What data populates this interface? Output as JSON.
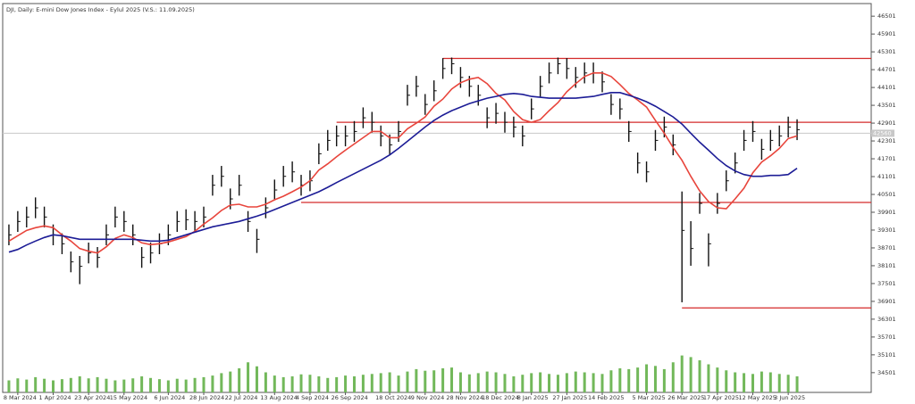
{
  "chart_data": {
    "type": "ohlc",
    "title": "DJI, Daily:  E-mini Dow Jones Index - Eylul 2025 (V.S.: 11.09.2025)",
    "categories": [
      null,
      "8 Mar 2024",
      null,
      null,
      null,
      "1 Apr 2024",
      null,
      null,
      null,
      "23 Apr 2024",
      null,
      null,
      null,
      "15 May 2024",
      null,
      null,
      null,
      null,
      "6 Jun 2024",
      null,
      null,
      null,
      "28 Jun 2024",
      null,
      null,
      null,
      "22 Jul 2024",
      null,
      null,
      null,
      "13 Aug 2024",
      null,
      null,
      null,
      "4 Sep 2024",
      null,
      null,
      null,
      "26 Sep 2024",
      null,
      null,
      null,
      null,
      "18 Oct 2024",
      null,
      null,
      null,
      "9 Nov 2024",
      null,
      null,
      null,
      "28 Nov 2024",
      null,
      null,
      null,
      "18 Dec 2024",
      null,
      null,
      null,
      "8 Jan 2025",
      null,
      null,
      null,
      "27 Jan 2025",
      null,
      null,
      null,
      "14 Feb 2025",
      null,
      null,
      null,
      null,
      "5 Mar 2025",
      null,
      null,
      null,
      "26 Mar 2025",
      null,
      null,
      null,
      "17 Apr 2025",
      null,
      null,
      null,
      "12 May 2025",
      null,
      null,
      null,
      "3 Jun 2025",
      null
    ],
    "high": [
      39490,
      39940,
      40090,
      40400,
      40090,
      39490,
      39190,
      38580,
      38430,
      38880,
      38730,
      39490,
      40090,
      39940,
      39490,
      38730,
      38880,
      39190,
      39490,
      39940,
      40000,
      39940,
      40090,
      41160,
      41460,
      40700,
      41160,
      39940,
      39340,
      40400,
      41000,
      41460,
      41610,
      41160,
      41310,
      42220,
      42670,
      42820,
      42820,
      42970,
      43430,
      43280,
      42820,
      42520,
      42970,
      44190,
      44490,
      43880,
      44340,
      45090,
      45110,
      44790,
      44490,
      44190,
      43430,
      43580,
      43280,
      43120,
      42820,
      43730,
      44490,
      44940,
      45110,
      45090,
      44790,
      44940,
      44940,
      44640,
      43880,
      43730,
      42970,
      41910,
      41610,
      42670,
      43120,
      42520,
      40600,
      39600,
      40550,
      39190,
      40550,
      41310,
      41910,
      42670,
      42970,
      42370,
      42670,
      42820,
      43120,
      43030
    ],
    "low": [
      38790,
      39240,
      39390,
      39700,
      39390,
      38790,
      38490,
      37880,
      37480,
      38180,
      38030,
      38790,
      39390,
      39240,
      38790,
      38030,
      38180,
      38490,
      38790,
      39240,
      39300,
      39240,
      39390,
      40460,
      40760,
      40000,
      40460,
      39240,
      38530,
      39700,
      40300,
      40760,
      40910,
      40460,
      40610,
      41520,
      41970,
      42120,
      42120,
      42270,
      42730,
      42580,
      42120,
      41820,
      42270,
      43490,
      43790,
      43180,
      43640,
      44390,
      44550,
      44090,
      43790,
      43490,
      42730,
      42880,
      42580,
      42420,
      42120,
      43030,
      43790,
      44240,
      44550,
      44390,
      44090,
      44240,
      44240,
      43940,
      43180,
      43030,
      42270,
      41210,
      40910,
      41970,
      42420,
      41820,
      36870,
      38100,
      39850,
      38080,
      39850,
      40610,
      41210,
      41970,
      42270,
      41670,
      41970,
      42120,
      42420,
      42330
    ],
    "close": [
      39140,
      39590,
      39740,
      40050,
      39740,
      39140,
      38840,
      38230,
      38080,
      38530,
      38380,
      39140,
      39740,
      39590,
      39140,
      38380,
      38530,
      38840,
      39140,
      39590,
      39650,
      39590,
      39740,
      40810,
      41110,
      40350,
      40810,
      39590,
      38990,
      40050,
      40650,
      41110,
      41260,
      40810,
      40960,
      41870,
      42320,
      42470,
      42470,
      42620,
      43080,
      42930,
      42470,
      42170,
      42620,
      43840,
      44140,
      43530,
      43990,
      44740,
      44900,
      44440,
      44140,
      43840,
      43080,
      43230,
      42930,
      42770,
      42470,
      43380,
      44140,
      44590,
      44900,
      44740,
      44440,
      44590,
      44590,
      44290,
      43530,
      43380,
      42620,
      41560,
      41260,
      42320,
      42770,
      42170,
      39290,
      38680,
      40200,
      38840,
      40200,
      40960,
      41560,
      42320,
      42620,
      42020,
      42320,
      42470,
      42770,
      42680
    ],
    "bar_color": "#111111",
    "moving_averages": [
      {
        "color": "#e8453c",
        "values": [
          38930,
          39110,
          39290,
          39380,
          39440,
          39380,
          39140,
          38930,
          38680,
          38590,
          38530,
          38740,
          39020,
          39140,
          39050,
          38870,
          38810,
          38840,
          38900,
          38990,
          39080,
          39260,
          39500,
          39710,
          39960,
          40140,
          40170,
          40080,
          40080,
          40170,
          40320,
          40440,
          40590,
          40750,
          40960,
          41320,
          41530,
          41770,
          41990,
          42200,
          42410,
          42620,
          42620,
          42410,
          42410,
          42710,
          42900,
          43110,
          43470,
          43710,
          44050,
          44260,
          44380,
          44440,
          44230,
          43900,
          43680,
          43290,
          43020,
          42930,
          43020,
          43320,
          43590,
          43960,
          44230,
          44470,
          44590,
          44590,
          44470,
          44200,
          43900,
          43680,
          43440,
          42990,
          42560,
          42080,
          41650,
          41110,
          40620,
          40260,
          40050,
          40020,
          40350,
          40710,
          41230,
          41590,
          41800,
          42050,
          42380,
          42470
        ]
      },
      {
        "color": "#1c1c96",
        "values": [
          38560,
          38650,
          38800,
          38930,
          39050,
          39140,
          39110,
          39050,
          38990,
          38990,
          38990,
          38990,
          38990,
          38990,
          38990,
          38960,
          38930,
          38930,
          38960,
          39050,
          39140,
          39230,
          39320,
          39410,
          39470,
          39530,
          39590,
          39680,
          39770,
          39870,
          39990,
          40110,
          40230,
          40350,
          40470,
          40590,
          40740,
          40900,
          41050,
          41200,
          41350,
          41500,
          41650,
          41830,
          42050,
          42290,
          42530,
          42770,
          42990,
          43170,
          43320,
          43440,
          43560,
          43650,
          43740,
          43800,
          43870,
          43900,
          43870,
          43800,
          43770,
          43740,
          43740,
          43740,
          43740,
          43770,
          43800,
          43870,
          43930,
          43930,
          43840,
          43740,
          43620,
          43470,
          43290,
          43110,
          42870,
          42560,
          42260,
          41990,
          41710,
          41470,
          41290,
          41170,
          41110,
          41110,
          41140,
          41140,
          41170,
          41380
        ]
      }
    ],
    "volume": {
      "color": "#72b85a",
      "lim": [
        0,
        100
      ],
      "values": [
        30,
        35,
        32,
        38,
        34,
        30,
        33,
        36,
        40,
        35,
        38,
        34,
        30,
        32,
        35,
        40,
        36,
        33,
        30,
        34,
        32,
        36,
        38,
        42,
        48,
        52,
        60,
        75,
        65,
        50,
        42,
        38,
        40,
        45,
        44,
        40,
        36,
        38,
        42,
        40,
        44,
        46,
        48,
        50,
        42,
        52,
        58,
        54,
        55,
        60,
        62,
        50,
        45,
        48,
        52,
        50,
        46,
        40,
        44,
        48,
        50,
        46,
        44,
        48,
        52,
        50,
        48,
        46,
        55,
        60,
        58,
        62,
        70,
        66,
        58,
        75,
        92,
        88,
        80,
        70,
        62,
        55,
        50,
        48,
        46,
        52,
        50,
        46,
        44,
        40
      ]
    },
    "levels": [
      {
        "value": 45080,
        "from_index": 49,
        "color": "#d42a2a"
      },
      {
        "value": 42930,
        "from_index": 37,
        "color": "#d42a2a"
      },
      {
        "value": 40230,
        "from_index": 33,
        "color": "#d42a2a"
      },
      {
        "value": 36680,
        "from_index": 76,
        "color": "#d42a2a"
      }
    ],
    "current_price": 42560,
    "ylim": [
      33836,
      46926
    ],
    "yticks": [
      46501,
      45901,
      45301,
      44701,
      44101,
      43501,
      42901,
      42301,
      41701,
      41101,
      40501,
      39901,
      39301,
      38701,
      38101,
      37501,
      36901,
      36301,
      35701,
      35101,
      34501
    ]
  }
}
